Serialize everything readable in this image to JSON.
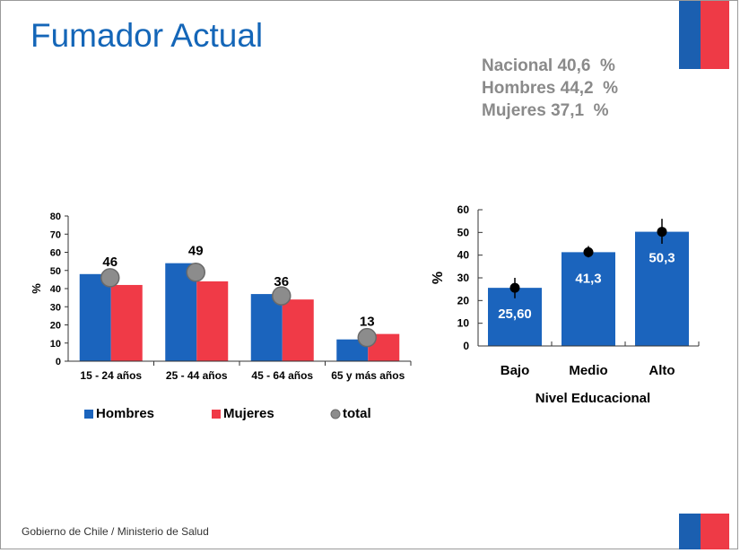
{
  "slide": {
    "title": "Fumador Actual",
    "stats": [
      "Nacional 40,6  %",
      "Hombres 44,2  %",
      "Mujeres 37,1  %"
    ],
    "footer": "Gobierno de Chile / Ministerio de Salud"
  },
  "colors": {
    "title": "#1466b8",
    "hombres": "#1b64bd",
    "mujeres": "#f03a47",
    "total": "#8c8c8c",
    "educ": "#1b64bd",
    "stats_text": "#8a8a8a"
  },
  "chart_data": [
    {
      "type": "bar",
      "categories": [
        "15 - 24 años",
        "25 - 44 años",
        "45 - 64 años",
        "65 y más años"
      ],
      "series": [
        {
          "name": "Hombres",
          "values": [
            48,
            54,
            37,
            12
          ]
        },
        {
          "name": "Mujeres",
          "values": [
            42,
            44,
            34,
            15
          ]
        },
        {
          "name": "total",
          "type": "scatter",
          "values": [
            46,
            49,
            36,
            13
          ]
        }
      ],
      "data_labels": [
        "46",
        "49",
        "36",
        "13"
      ],
      "ylabel": "%",
      "ylim": [
        0,
        80
      ],
      "yticks": [
        0,
        10,
        20,
        30,
        40,
        50,
        60,
        70,
        80
      ],
      "legend": "bottom"
    },
    {
      "type": "bar",
      "categories": [
        "Bajo",
        "Medio",
        "Alto"
      ],
      "values": [
        25.6,
        41.3,
        50.3
      ],
      "data_labels": [
        "25,60",
        "41,3",
        "50,3"
      ],
      "error_bars": [
        [
          21,
          30
        ],
        [
          39,
          44
        ],
        [
          45,
          56
        ]
      ],
      "xlabel": "Nivel Educacional",
      "ylabel": "%",
      "ylim": [
        0,
        60
      ],
      "yticks": [
        0,
        10,
        20,
        30,
        40,
        50,
        60
      ]
    }
  ]
}
